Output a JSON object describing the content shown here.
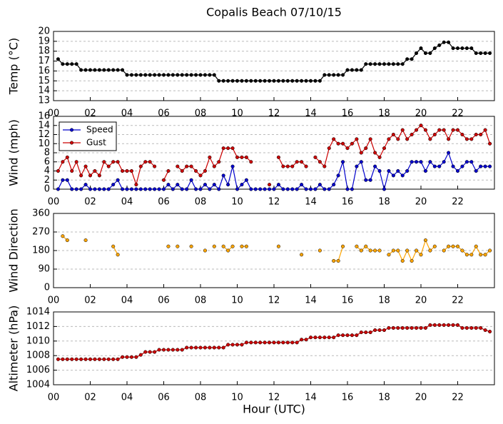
{
  "chart_data": [
    {
      "type": "line",
      "title": "Copalis Beach 07/10/15",
      "ylabel": "Temp (°C)",
      "color": "#000000",
      "grid": true,
      "x": [
        0.25,
        0.5,
        0.75,
        1,
        1.25,
        1.5,
        1.75,
        2,
        2.25,
        2.5,
        2.75,
        3,
        3.25,
        3.5,
        3.75,
        4,
        4.25,
        4.5,
        4.75,
        5,
        5.25,
        5.5,
        5.75,
        6,
        6.25,
        6.5,
        6.75,
        7,
        7.25,
        7.5,
        7.75,
        8,
        8.25,
        8.5,
        8.75,
        9,
        9.25,
        9.5,
        9.75,
        10,
        10.25,
        10.5,
        10.75,
        11,
        11.25,
        11.5,
        11.75,
        12,
        12.25,
        12.5,
        12.75,
        13,
        13.25,
        13.5,
        13.75,
        14,
        14.25,
        14.5,
        14.75,
        15,
        15.25,
        15.5,
        15.75,
        16,
        16.25,
        16.5,
        16.75,
        17,
        17.25,
        17.5,
        17.75,
        18,
        18.25,
        18.5,
        18.75,
        19,
        19.25,
        19.5,
        19.75,
        20,
        20.25,
        20.5,
        20.75,
        21,
        21.25,
        21.5,
        21.75,
        22,
        22.25,
        22.5,
        22.75,
        23,
        23.25,
        23.5,
        23.75
      ],
      "values": [
        17.2,
        16.7,
        16.7,
        16.7,
        16.7,
        16.1,
        16.1,
        16.1,
        16.1,
        16.1,
        16.1,
        16.1,
        16.1,
        16.1,
        16.1,
        15.6,
        15.6,
        15.6,
        15.6,
        15.6,
        15.6,
        15.6,
        15.6,
        15.6,
        15.6,
        15.6,
        15.6,
        15.6,
        15.6,
        15.6,
        15.6,
        15.6,
        15.6,
        15.6,
        15.6,
        15.0,
        15.0,
        15.0,
        15.0,
        15.0,
        15.0,
        15.0,
        15.0,
        15.0,
        15.0,
        15.0,
        15.0,
        15.0,
        15.0,
        15.0,
        15.0,
        15.0,
        15.0,
        15.0,
        15.0,
        15.0,
        15.0,
        15.0,
        15.6,
        15.6,
        15.6,
        15.6,
        15.6,
        16.1,
        16.1,
        16.1,
        16.1,
        16.7,
        16.7,
        16.7,
        16.7,
        16.7,
        16.7,
        16.7,
        16.7,
        16.7,
        17.2,
        17.2,
        17.8,
        18.3,
        17.8,
        17.8,
        18.3,
        18.6,
        18.9,
        18.9,
        18.3,
        18.3,
        18.3,
        18.3,
        18.3,
        17.8,
        17.8,
        17.8,
        17.8
      ],
      "xlim": [
        0,
        24
      ],
      "xticks": [
        {
          "value": 0,
          "label": "00"
        },
        {
          "value": 2,
          "label": "02"
        },
        {
          "value": 4,
          "label": "04"
        },
        {
          "value": 6,
          "label": "06"
        },
        {
          "value": 8,
          "label": "08"
        },
        {
          "value": 10,
          "label": "10"
        },
        {
          "value": 12,
          "label": "12"
        },
        {
          "value": 14,
          "label": "14"
        },
        {
          "value": 16,
          "label": "16"
        },
        {
          "value": 18,
          "label": "18"
        },
        {
          "value": 20,
          "label": "20"
        },
        {
          "value": 22,
          "label": "22"
        }
      ],
      "ylim": [
        13,
        20
      ],
      "yticks": [
        13,
        14,
        15,
        16,
        17,
        18,
        19,
        20
      ]
    },
    {
      "type": "line",
      "ylabel": "Wind (mph)",
      "grid": true,
      "legend": "upper left",
      "x": [
        0.25,
        0.5,
        0.75,
        1,
        1.25,
        1.5,
        1.75,
        2,
        2.25,
        2.5,
        2.75,
        3,
        3.25,
        3.5,
        3.75,
        4,
        4.25,
        4.5,
        4.75,
        5,
        5.25,
        5.5,
        5.75,
        6,
        6.25,
        6.5,
        6.75,
        7,
        7.25,
        7.5,
        7.75,
        8,
        8.25,
        8.5,
        8.75,
        9,
        9.25,
        9.5,
        9.75,
        10,
        10.25,
        10.5,
        10.75,
        11,
        11.25,
        11.5,
        11.75,
        12,
        12.25,
        12.5,
        12.75,
        13,
        13.25,
        13.5,
        13.75,
        14,
        14.25,
        14.5,
        14.75,
        15,
        15.25,
        15.5,
        15.75,
        16,
        16.25,
        16.5,
        16.75,
        17,
        17.25,
        17.5,
        17.75,
        18,
        18.25,
        18.5,
        18.75,
        19,
        19.25,
        19.5,
        19.75,
        20,
        20.25,
        20.5,
        20.75,
        21,
        21.25,
        21.5,
        21.75,
        22,
        22.25,
        22.5,
        22.75,
        23,
        23.25,
        23.5,
        23.75
      ],
      "series": [
        {
          "name": "Speed",
          "color": "#0000cc",
          "values": [
            0,
            2,
            2,
            0,
            0,
            0,
            1,
            0,
            0,
            0,
            0,
            0,
            1,
            2,
            0,
            0,
            0,
            0,
            0,
            0,
            0,
            0,
            0,
            0,
            1,
            0,
            1,
            0,
            0,
            2,
            0,
            0,
            1,
            0,
            1,
            0,
            3,
            1,
            5,
            0,
            1,
            2,
            0,
            0,
            0,
            0,
            0,
            0,
            1,
            0,
            0,
            0,
            0,
            1,
            0,
            0,
            0,
            1,
            0,
            0,
            1,
            3,
            6,
            0,
            0,
            5,
            6,
            2,
            2,
            5,
            4,
            0,
            4,
            3,
            4,
            3,
            4,
            6,
            6,
            6,
            4,
            6,
            5,
            5,
            6,
            8,
            5,
            4,
            5,
            6,
            6,
            4,
            5,
            5,
            5
          ]
        },
        {
          "name": "Gust",
          "color": "#cc0000",
          "values": [
            4,
            6,
            7,
            4,
            6,
            3,
            5,
            3,
            4,
            3,
            6,
            5,
            6,
            6,
            4,
            4,
            4,
            1,
            5,
            6,
            6,
            5,
            null,
            2,
            4,
            null,
            5,
            4,
            5,
            5,
            4,
            3,
            4,
            7,
            5,
            6,
            9,
            9,
            9,
            7,
            7,
            7,
            6,
            null,
            null,
            null,
            1,
            null,
            7,
            5,
            5,
            5,
            6,
            6,
            5,
            null,
            7,
            6,
            5,
            9,
            11,
            10,
            10,
            9,
            10,
            11,
            8,
            9,
            11,
            8,
            7,
            9,
            11,
            12,
            11,
            13,
            11,
            12,
            13,
            14,
            13,
            11,
            12,
            13,
            13,
            11,
            13,
            13,
            12,
            11,
            11,
            12,
            12,
            13,
            10
          ]
        }
      ],
      "xlim": [
        0,
        24
      ],
      "xticks": [
        {
          "value": 0,
          "label": "00"
        },
        {
          "value": 2,
          "label": "02"
        },
        {
          "value": 4,
          "label": "04"
        },
        {
          "value": 6,
          "label": "06"
        },
        {
          "value": 8,
          "label": "08"
        },
        {
          "value": 10,
          "label": "10"
        },
        {
          "value": 12,
          "label": "12"
        },
        {
          "value": 14,
          "label": "14"
        },
        {
          "value": 16,
          "label": "16"
        },
        {
          "value": 18,
          "label": "18"
        },
        {
          "value": 20,
          "label": "20"
        },
        {
          "value": 22,
          "label": "22"
        }
      ],
      "ylim": [
        0,
        16
      ],
      "yticks": [
        0,
        2,
        4,
        6,
        8,
        10,
        12,
        14,
        16
      ]
    },
    {
      "type": "line",
      "ylabel": "Wind Direction",
      "color": "#ffa500",
      "grid": true,
      "x": [
        0.25,
        0.5,
        0.75,
        1,
        1.25,
        1.5,
        1.75,
        2,
        2.25,
        2.5,
        2.75,
        3,
        3.25,
        3.5,
        3.75,
        4,
        4.25,
        4.5,
        4.75,
        5,
        5.25,
        5.5,
        5.75,
        6,
        6.25,
        6.5,
        6.75,
        7,
        7.25,
        7.5,
        7.75,
        8,
        8.25,
        8.5,
        8.75,
        9,
        9.25,
        9.5,
        9.75,
        10,
        10.25,
        10.5,
        10.75,
        11,
        11.25,
        11.5,
        11.75,
        12,
        12.25,
        12.5,
        12.75,
        13,
        13.25,
        13.5,
        13.75,
        14,
        14.25,
        14.5,
        14.75,
        15,
        15.25,
        15.5,
        15.75,
        16,
        16.25,
        16.5,
        16.75,
        17,
        17.25,
        17.5,
        17.75,
        18,
        18.25,
        18.5,
        18.75,
        19,
        19.25,
        19.5,
        19.75,
        20,
        20.25,
        20.5,
        20.75,
        21,
        21.25,
        21.5,
        21.75,
        22,
        22.25,
        22.5,
        22.75,
        23,
        23.25,
        23.5,
        23.75
      ],
      "values": [
        null,
        250,
        230,
        null,
        null,
        null,
        230,
        null,
        null,
        null,
        null,
        null,
        200,
        160,
        null,
        null,
        null,
        null,
        null,
        null,
        null,
        null,
        null,
        null,
        200,
        null,
        200,
        null,
        null,
        200,
        null,
        null,
        180,
        null,
        200,
        null,
        200,
        180,
        200,
        null,
        200,
        200,
        null,
        null,
        null,
        null,
        null,
        null,
        200,
        null,
        null,
        null,
        null,
        160,
        null,
        null,
        null,
        180,
        null,
        null,
        130,
        130,
        200,
        null,
        null,
        200,
        180,
        200,
        180,
        180,
        180,
        null,
        160,
        180,
        180,
        130,
        180,
        130,
        180,
        160,
        230,
        180,
        200,
        null,
        180,
        200,
        200,
        200,
        180,
        160,
        160,
        200,
        160,
        160,
        180
      ],
      "xlim": [
        0,
        24
      ],
      "xticks": [
        {
          "value": 0,
          "label": "00"
        },
        {
          "value": 2,
          "label": "02"
        },
        {
          "value": 4,
          "label": "04"
        },
        {
          "value": 6,
          "label": "06"
        },
        {
          "value": 8,
          "label": "08"
        },
        {
          "value": 10,
          "label": "10"
        },
        {
          "value": 12,
          "label": "12"
        },
        {
          "value": 14,
          "label": "14"
        },
        {
          "value": 16,
          "label": "16"
        },
        {
          "value": 18,
          "label": "18"
        },
        {
          "value": 20,
          "label": "20"
        },
        {
          "value": 22,
          "label": "22"
        }
      ],
      "ylim": [
        0,
        360
      ],
      "yticks": [
        0,
        90,
        180,
        270,
        360
      ]
    },
    {
      "type": "line",
      "ylabel": "Altimeter (hPa)",
      "xlabel": "Hour (UTC)",
      "color": "#cc0000",
      "grid": true,
      "x": [
        0.25,
        0.5,
        0.75,
        1,
        1.25,
        1.5,
        1.75,
        2,
        2.25,
        2.5,
        2.75,
        3,
        3.25,
        3.5,
        3.75,
        4,
        4.25,
        4.5,
        4.75,
        5,
        5.25,
        5.5,
        5.75,
        6,
        6.25,
        6.5,
        6.75,
        7,
        7.25,
        7.5,
        7.75,
        8,
        8.25,
        8.5,
        8.75,
        9,
        9.25,
        9.5,
        9.75,
        10,
        10.25,
        10.5,
        10.75,
        11,
        11.25,
        11.5,
        11.75,
        12,
        12.25,
        12.5,
        12.75,
        13,
        13.25,
        13.5,
        13.75,
        14,
        14.25,
        14.5,
        14.75,
        15,
        15.25,
        15.5,
        15.75,
        16,
        16.25,
        16.5,
        16.75,
        17,
        17.25,
        17.5,
        17.75,
        18,
        18.25,
        18.5,
        18.75,
        19,
        19.25,
        19.5,
        19.75,
        20,
        20.25,
        20.5,
        20.75,
        21,
        21.25,
        21.5,
        21.75,
        22,
        22.25,
        22.5,
        22.75,
        23,
        23.25,
        23.5,
        23.75
      ],
      "values": [
        1007.5,
        1007.5,
        1007.5,
        1007.5,
        1007.5,
        1007.5,
        1007.5,
        1007.5,
        1007.5,
        1007.5,
        1007.5,
        1007.5,
        1007.5,
        1007.5,
        1007.8,
        1007.8,
        1007.8,
        1007.8,
        1008.1,
        1008.5,
        1008.5,
        1008.5,
        1008.8,
        1008.8,
        1008.8,
        1008.8,
        1008.8,
        1008.8,
        1009.1,
        1009.1,
        1009.1,
        1009.1,
        1009.1,
        1009.1,
        1009.1,
        1009.1,
        1009.1,
        1009.5,
        1009.5,
        1009.5,
        1009.5,
        1009.8,
        1009.8,
        1009.8,
        1009.8,
        1009.8,
        1009.8,
        1009.8,
        1009.8,
        1009.8,
        1009.8,
        1009.8,
        1009.8,
        1010.2,
        1010.2,
        1010.5,
        1010.5,
        1010.5,
        1010.5,
        1010.5,
        1010.5,
        1010.8,
        1010.8,
        1010.8,
        1010.8,
        1010.8,
        1011.2,
        1011.2,
        1011.2,
        1011.5,
        1011.5,
        1011.5,
        1011.8,
        1011.8,
        1011.8,
        1011.8,
        1011.8,
        1011.8,
        1011.8,
        1011.8,
        1011.8,
        1012.2,
        1012.2,
        1012.2,
        1012.2,
        1012.2,
        1012.2,
        1012.2,
        1011.8,
        1011.8,
        1011.8,
        1011.8,
        1011.8,
        1011.5,
        1011.3
      ],
      "xlim": [
        0,
        24
      ],
      "xticks": [
        {
          "value": 0,
          "label": "00"
        },
        {
          "value": 2,
          "label": "02"
        },
        {
          "value": 4,
          "label": "04"
        },
        {
          "value": 6,
          "label": "06"
        },
        {
          "value": 8,
          "label": "08"
        },
        {
          "value": 10,
          "label": "10"
        },
        {
          "value": 12,
          "label": "12"
        },
        {
          "value": 14,
          "label": "14"
        },
        {
          "value": 16,
          "label": "16"
        },
        {
          "value": 18,
          "label": "18"
        },
        {
          "value": 20,
          "label": "20"
        },
        {
          "value": 22,
          "label": "22"
        }
      ],
      "ylim": [
        1004,
        1014
      ],
      "yticks": [
        1004,
        1006,
        1008,
        1010,
        1012,
        1014
      ]
    }
  ]
}
